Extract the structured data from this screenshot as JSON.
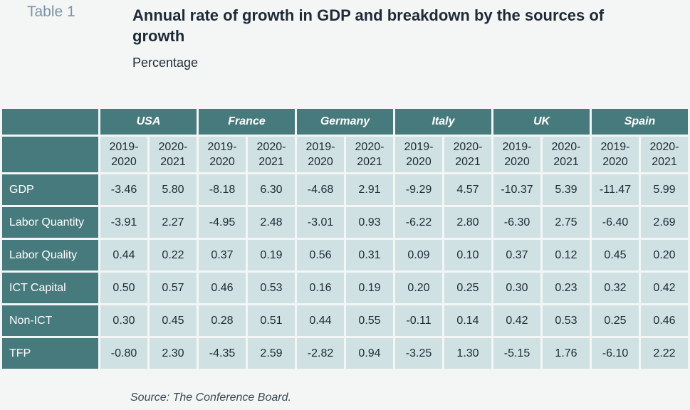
{
  "header": {
    "table_label": "Table 1",
    "title": "Annual rate of growth in GDP and breakdown by the sources of growth",
    "subtitle": "Percentage"
  },
  "colors": {
    "header_bg": "#477a7c",
    "cell_bg": "#d0e1e3",
    "page_bg": "#f4f6f6"
  },
  "table": {
    "countries": [
      "USA",
      "France",
      "Germany",
      "Italy",
      "UK",
      "Spain"
    ],
    "periods": [
      "2019-\n2020",
      "2020-\n2021"
    ],
    "rows": [
      {
        "label": "GDP",
        "values": [
          "-3.46",
          "5.80",
          "-8.18",
          "6.30",
          "-4.68",
          "2.91",
          "-9.29",
          "4.57",
          "-10.37",
          "5.39",
          "-11.47",
          "5.99"
        ]
      },
      {
        "label": "Labor Quantity",
        "values": [
          "-3.91",
          "2.27",
          "-4.95",
          "2.48",
          "-3.01",
          "0.93",
          "-6.22",
          "2.80",
          "-6.30",
          "2.75",
          "-6.40",
          "2.69"
        ]
      },
      {
        "label": "Labor Quality",
        "values": [
          "0.44",
          "0.22",
          "0.37",
          "0.19",
          "0.56",
          "0.31",
          "0.09",
          "0.10",
          "0.37",
          "0.12",
          "0.45",
          "0.20"
        ]
      },
      {
        "label": "ICT Capital",
        "values": [
          "0.50",
          "0.57",
          "0.46",
          "0.53",
          "0.16",
          "0.19",
          "0.20",
          "0.25",
          "0.30",
          "0.23",
          "0.32",
          "0.42"
        ]
      },
      {
        "label": "Non-ICT",
        "values": [
          "0.30",
          "0.45",
          "0.28",
          "0.51",
          "0.44",
          "0.55",
          "-0.11",
          "0.14",
          "0.42",
          "0.53",
          "0.25",
          "0.46"
        ]
      },
      {
        "label": "TFP",
        "values": [
          "-0.80",
          "2.30",
          "-4.35",
          "2.59",
          "-2.82",
          "0.94",
          "-3.25",
          "1.30",
          "-5.15",
          "1.76",
          "-6.10",
          "2.22"
        ]
      }
    ]
  },
  "footer": {
    "source": "Source: The Conference Board."
  }
}
